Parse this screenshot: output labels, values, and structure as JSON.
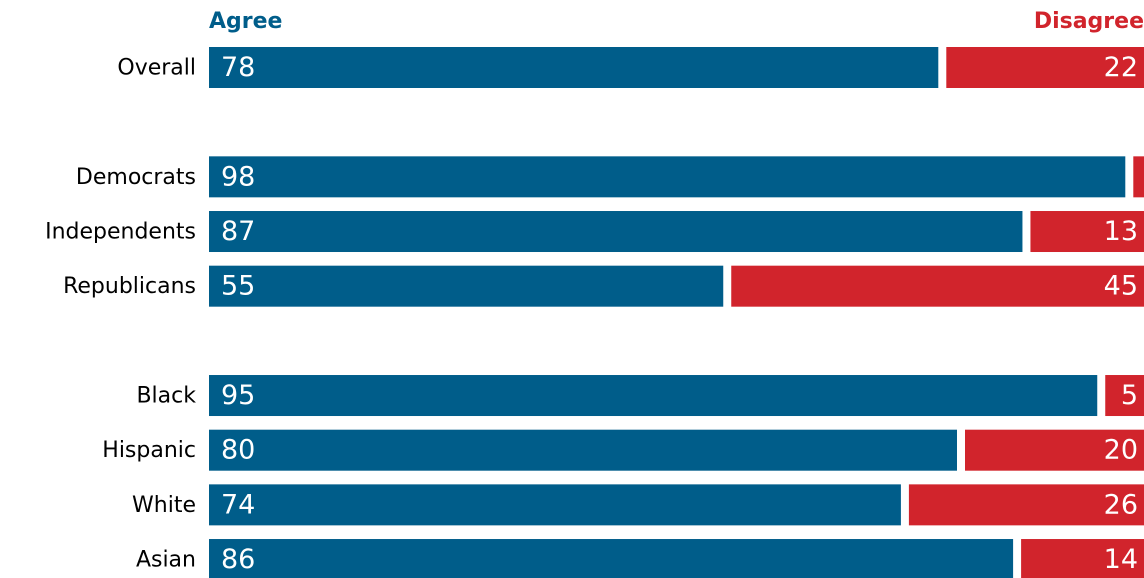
{
  "chart_data": {
    "type": "stacked_bar_horizontal",
    "categories": [
      "Overall",
      null,
      "Democrats",
      "Independents",
      "Republicans",
      null,
      "Black",
      "Hispanic",
      "White",
      "Asian"
    ],
    "series": [
      {
        "name": "Agree",
        "color": "#005d8a",
        "values": [
          78,
          null,
          98,
          87,
          55,
          null,
          95,
          80,
          74,
          86
        ]
      },
      {
        "name": "Disagree",
        "color": "#d1242c",
        "values": [
          22,
          null,
          2,
          13,
          45,
          null,
          5,
          20,
          26,
          14
        ]
      }
    ],
    "xlim": [
      0,
      100
    ]
  }
}
